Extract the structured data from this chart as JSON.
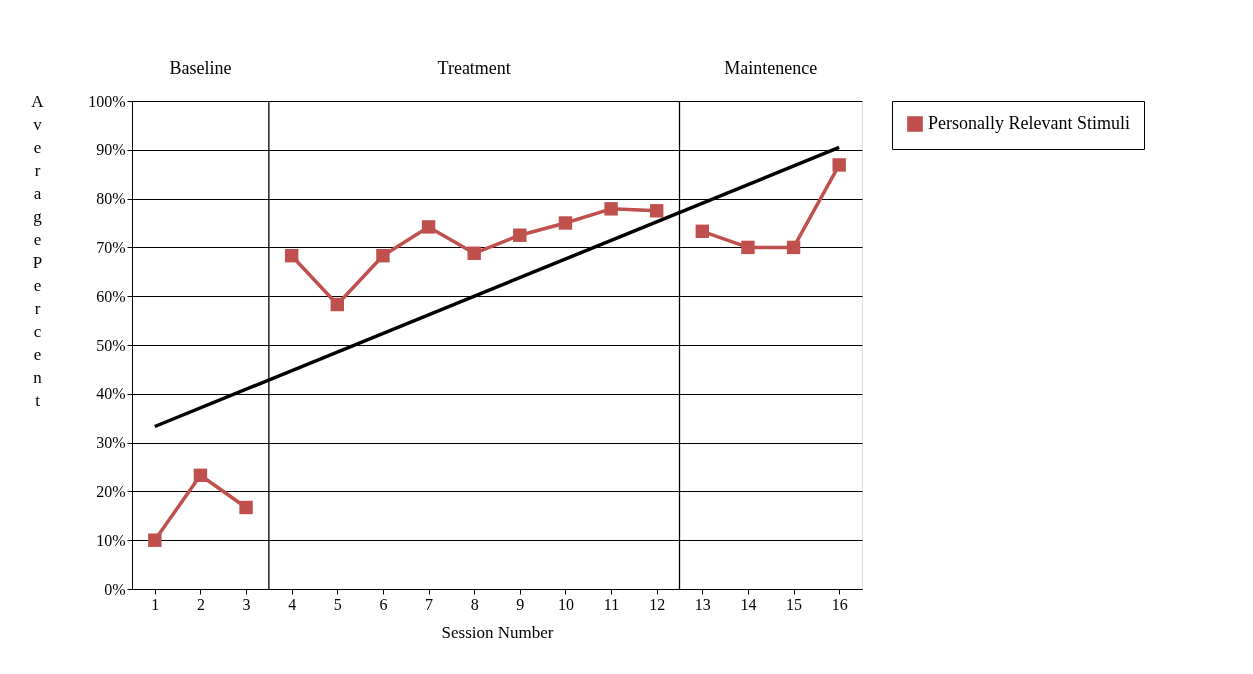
{
  "chart_data": {
    "type": "line",
    "xlabel": "Session Number",
    "ylabel": "Average Percent",
    "x": [
      1,
      2,
      3,
      4,
      5,
      6,
      7,
      8,
      9,
      10,
      11,
      12,
      13,
      14,
      15,
      16
    ],
    "series": [
      {
        "name": "Personally Relevant Stimuli",
        "color": "#c0504d",
        "values": [
          10,
          23.3,
          16.7,
          68.3,
          58.3,
          68.3,
          74.2,
          68.8,
          72.5,
          75,
          77.9,
          77.5,
          73.3,
          70,
          70,
          86.9
        ],
        "marker": "square"
      },
      {
        "type": "line",
        "color": "#000000",
        "x": [
          1,
          16
        ],
        "values": [
          33.3,
          90.5
        ],
        "marker": "none"
      }
    ],
    "xlim": [
      0.5,
      16.5
    ],
    "xticks": [
      1,
      2,
      3,
      4,
      5,
      6,
      7,
      8,
      9,
      10,
      11,
      12,
      13,
      14,
      15,
      16
    ],
    "ylim": [
      0,
      100
    ],
    "yticks": [
      {
        "value": 0,
        "label": "0%"
      },
      {
        "value": 10,
        "label": "10%"
      },
      {
        "value": 20,
        "label": "20%"
      },
      {
        "value": 30,
        "label": "30%"
      },
      {
        "value": 40,
        "label": "40%"
      },
      {
        "value": 50,
        "label": "50%"
      },
      {
        "value": 60,
        "label": "60%"
      },
      {
        "value": 70,
        "label": "70%"
      },
      {
        "value": 80,
        "label": "80%"
      },
      {
        "value": 90,
        "label": "90%"
      },
      {
        "value": 100,
        "label": "100%"
      }
    ],
    "ref_lines": [
      {
        "axis": "x",
        "value": 3.5,
        "color": "#000000"
      },
      {
        "axis": "x",
        "value": 12.5,
        "color": "#000000"
      }
    ],
    "annotations": [
      "Baseline",
      "Treatment",
      "Maintenence"
    ],
    "grid": "y",
    "legend": "right",
    "line_style": "solid"
  }
}
